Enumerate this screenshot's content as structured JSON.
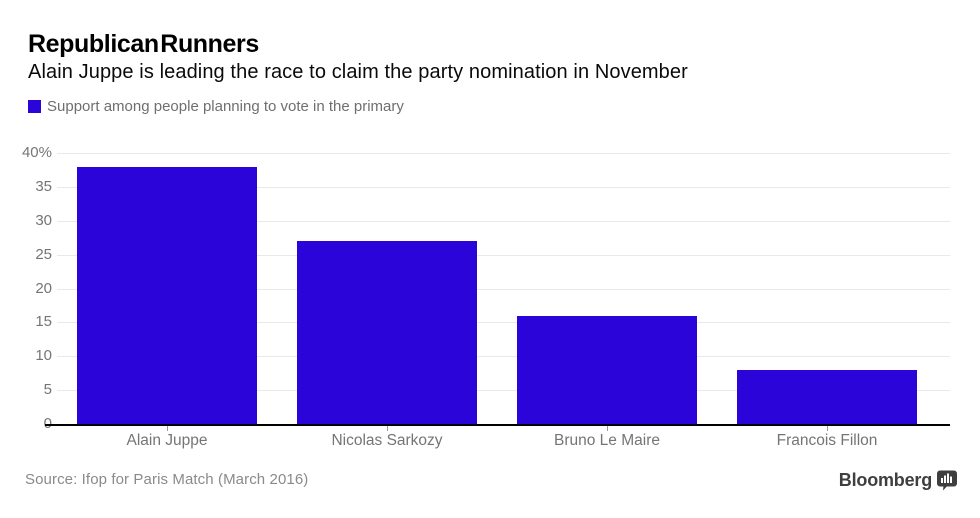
{
  "header": {
    "title": "Republican Runners",
    "subtitle": "Alain Juppe is leading the race to claim the party nomination in November"
  },
  "legend": {
    "label": "Support among people planning to vote in the primary",
    "swatch_color": "#2a04d8"
  },
  "chart_data": {
    "type": "bar",
    "title": "Republican Runners",
    "subtitle": "Alain Juppe is leading the race to claim the party nomination in November",
    "series_name": "Support among people planning to vote in the primary",
    "categories": [
      "Alain Juppe",
      "Nicolas Sarkozy",
      "Bruno Le Maire",
      "Francois Fillon"
    ],
    "values": [
      38,
      27,
      16,
      8
    ],
    "unit": "%",
    "xlabel": "",
    "ylabel": "",
    "ylim": [
      0,
      40
    ],
    "yticks": [
      40,
      35,
      30,
      25,
      20,
      15,
      10,
      5,
      0
    ],
    "ytick_labels": [
      "40%",
      "35",
      "30",
      "25",
      "20",
      "15",
      "10",
      "5",
      "0"
    ],
    "grid": true,
    "legend_position": "top-left",
    "bar_color": "#2a04d8"
  },
  "footer": {
    "source": "Source: Ifop for Paris Match (March 2016)",
    "brand": "Bloomberg"
  },
  "colors": {
    "bar": "#2a04d8",
    "grid": "#e9e9e9",
    "axis_line": "#000000",
    "tick_text": "#757575",
    "legend_text": "#6f6f6f",
    "source_text": "#8a8a8a",
    "brand_text": "#3f3f3f",
    "background": "#ffffff"
  }
}
